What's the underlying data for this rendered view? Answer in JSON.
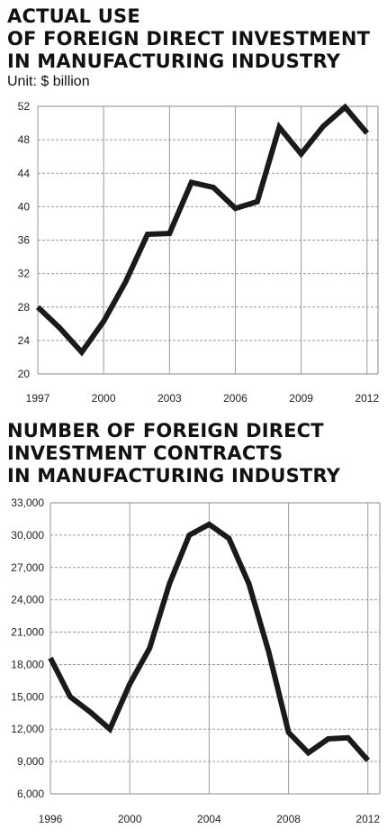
{
  "chart_data": [
    {
      "type": "line",
      "title_lines": [
        "ACTUAL USE",
        "OF FOREIGN DIRECT INVESTMENT",
        "IN MANUFACTURING INDUSTRY"
      ],
      "subtitle": "Unit: $ billion",
      "x": [
        1997,
        1998,
        1999,
        2000,
        2001,
        2002,
        2003,
        2004,
        2005,
        2006,
        2007,
        2008,
        2009,
        2010,
        2011,
        2012
      ],
      "values": [
        28.0,
        25.5,
        22.6,
        26.3,
        31.0,
        36.7,
        36.8,
        42.9,
        42.3,
        39.8,
        40.6,
        49.5,
        46.3,
        49.6,
        51.9,
        48.8
      ],
      "xlim": [
        1997,
        2012.5
      ],
      "ylim": [
        20,
        52
      ],
      "x_ticks": [
        "1997",
        "2000",
        "2003",
        "2006",
        "2009",
        "2012"
      ],
      "x_tick_values": [
        1997,
        2000,
        2003,
        2006,
        2009,
        2012
      ],
      "y_ticks": [
        "20",
        "24",
        "28",
        "32",
        "36",
        "40",
        "44",
        "48",
        "52"
      ],
      "y_tick_values": [
        20,
        24,
        28,
        32,
        36,
        40,
        44,
        48,
        52
      ],
      "grid": true,
      "line_color": "#1a1a1a"
    },
    {
      "type": "line",
      "title_lines": [
        "NUMBER OF FOREIGN DIRECT",
        "INVESTMENT CONTRACTS",
        "IN MANUFACTURING INDUSTRY"
      ],
      "x": [
        1996,
        1997,
        1998,
        1999,
        2000,
        2001,
        2002,
        2003,
        2004,
        2005,
        2006,
        2007,
        2008,
        2009,
        2010,
        2011,
        2012
      ],
      "values": [
        18600,
        15000,
        13600,
        12000,
        16200,
        19500,
        25500,
        30000,
        31000,
        29700,
        25500,
        19200,
        11700,
        9800,
        11100,
        11200,
        9100
      ],
      "xlim": [
        1996,
        2012.6
      ],
      "ylim": [
        6000,
        33000
      ],
      "x_ticks": [
        "1996",
        "2000",
        "2004",
        "2008",
        "2012"
      ],
      "x_tick_values": [
        1996,
        2000,
        2004,
        2008,
        2012
      ],
      "y_ticks": [
        "6,000",
        "9,000",
        "12,000",
        "15,000",
        "18,000",
        "21,000",
        "24,000",
        "27,000",
        "30,000",
        "33,000"
      ],
      "y_tick_values": [
        6000,
        9000,
        12000,
        15000,
        18000,
        21000,
        24000,
        27000,
        30000,
        33000
      ],
      "grid": true,
      "line_color": "#1a1a1a"
    }
  ]
}
